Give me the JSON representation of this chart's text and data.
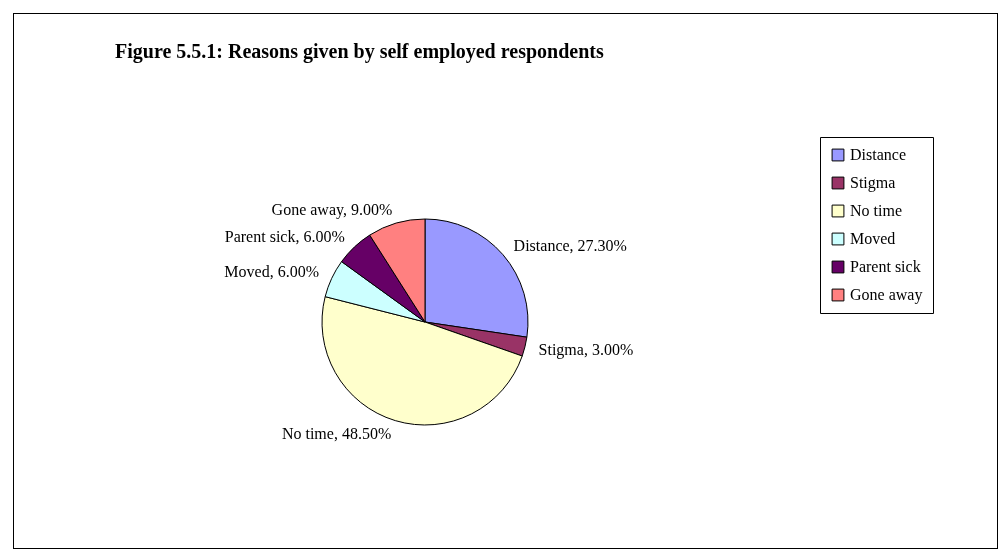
{
  "chart_data": {
    "type": "pie",
    "title": "Figure 5.5.1: Reasons given by self employed respondents",
    "categories": [
      "Distance",
      "Stigma",
      "No time",
      "Moved",
      "Parent sick",
      "Gone away"
    ],
    "values": [
      27.3,
      3,
      48.5,
      6,
      6,
      9
    ],
    "value_labels": [
      "Distance, 27.30%",
      "Stigma, 3.00%",
      "No time, 48.50%",
      "Moved, 6.00%",
      "Parent sick, 6.00%",
      "Gone away, 9.00%"
    ],
    "colors": [
      "#9999ff",
      "#993366",
      "#ffffcc",
      "#ccffff",
      "#660066",
      "#ff8080"
    ],
    "legend": "right"
  }
}
